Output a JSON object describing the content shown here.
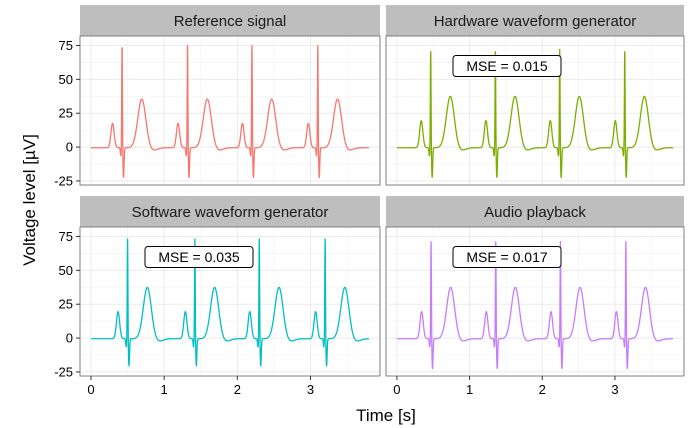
{
  "chart_data": {
    "type": "line",
    "layout": "facet 2x2",
    "xlabel": "Time [s]",
    "ylabel": "Voltage level [µV]",
    "xlim": [
      -0.15,
      3.95
    ],
    "ylim": [
      -28,
      82
    ],
    "xticks": [
      0,
      1,
      2,
      3
    ],
    "yticks": [
      -25,
      0,
      25,
      50,
      75
    ],
    "grid": true,
    "colors": {
      "reference": "#F8766D",
      "hardware": "#7CAE00",
      "software": "#00BFC4",
      "audio": "#C77CFF",
      "strip_background": "#BEBEBE",
      "gridline": "#EBEBEB",
      "panel_border": "#7F7F7F"
    },
    "panels": [
      {
        "title": "Reference signal",
        "color": "#F8766D",
        "mse_label": "",
        "x_start": 0.0,
        "x_end": 3.8,
        "beats": [
          0.425,
          1.32,
          2.2,
          3.1
        ],
        "p_height": 18,
        "r_height": 76,
        "s_depth": -22,
        "t_height": 36
      },
      {
        "title": "Hardware waveform generator",
        "color": "#7CAE00",
        "mse_label": "MSE =  0.015",
        "x_start": 0.0,
        "x_end": 3.8,
        "beats": [
          0.465,
          1.355,
          2.24,
          3.135
        ],
        "p_height": 20,
        "r_height": 73,
        "s_depth": -22,
        "t_height": 38
      },
      {
        "title": "Software waveform generator",
        "color": "#00BFC4",
        "mse_label": "MSE =  0.035",
        "x_start": 0.0,
        "x_end": 3.8,
        "beats": [
          0.5,
          1.42,
          2.3,
          3.2
        ],
        "p_height": 20,
        "r_height": 74,
        "s_depth": -20,
        "t_height": 38
      },
      {
        "title": "Audio playback",
        "color": "#C77CFF",
        "mse_label": "MSE =  0.017",
        "x_start": 0.0,
        "x_end": 3.8,
        "beats": [
          0.47,
          1.36,
          2.25,
          3.15
        ],
        "p_height": 20,
        "r_height": 72,
        "s_depth": -22,
        "t_height": 38
      }
    ]
  }
}
